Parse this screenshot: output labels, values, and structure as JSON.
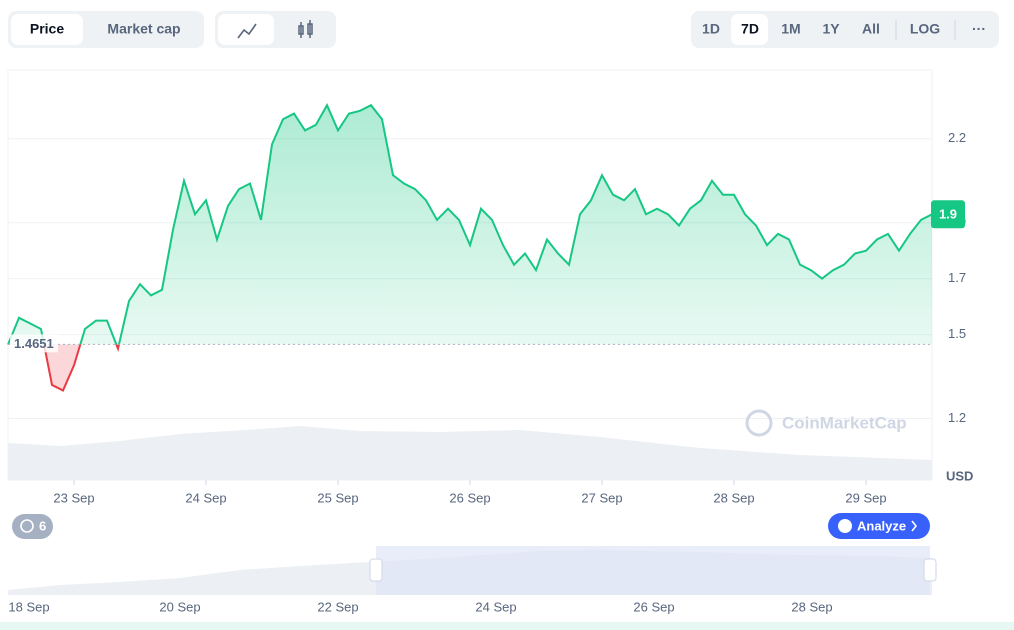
{
  "toolbar": {
    "tabs": [
      "Price",
      "Market cap"
    ],
    "ranges": [
      "1D",
      "7D",
      "1M",
      "1Y",
      "All"
    ],
    "log": "LOG",
    "more": "···"
  },
  "chart_data": {
    "type": "line",
    "color": "#16c784",
    "down_color": "#ea3943",
    "x": [
      0,
      1,
      2,
      3,
      4,
      5,
      6,
      7,
      8,
      9,
      10,
      11,
      12,
      13,
      14,
      15,
      16,
      17,
      18,
      19,
      20,
      21,
      22,
      23,
      24,
      25,
      26,
      27,
      28,
      29,
      30,
      31,
      32,
      33,
      34,
      35,
      36,
      37,
      38,
      39,
      40,
      41,
      42,
      43,
      44,
      45,
      46,
      47,
      48,
      49,
      50,
      51,
      52,
      53,
      54,
      55,
      56,
      57,
      58,
      59,
      60,
      61,
      62,
      63,
      64,
      65,
      66,
      67,
      68,
      69,
      70,
      71,
      72,
      73,
      74,
      75,
      76,
      77,
      78,
      79,
      80,
      81,
      82,
      83,
      84
    ],
    "values": [
      1.464,
      1.56,
      1.54,
      1.52,
      1.32,
      1.3,
      1.39,
      1.52,
      1.55,
      1.55,
      1.45,
      1.62,
      1.68,
      1.64,
      1.66,
      1.875,
      2.05,
      1.93,
      1.98,
      1.84,
      1.96,
      2.02,
      2.04,
      1.91,
      2.18,
      2.27,
      2.29,
      2.23,
      2.25,
      2.32,
      2.23,
      2.29,
      2.3,
      2.32,
      2.27,
      2.07,
      2.04,
      2.02,
      1.98,
      1.91,
      1.95,
      1.91,
      1.82,
      1.95,
      1.91,
      1.82,
      1.75,
      1.79,
      1.73,
      1.84,
      1.79,
      1.75,
      1.93,
      1.98,
      2.07,
      2.0,
      1.98,
      2.02,
      1.93,
      1.95,
      1.93,
      1.89,
      1.95,
      1.98,
      2.05,
      2.0,
      2.0,
      1.93,
      1.89,
      1.82,
      1.86,
      1.84,
      1.75,
      1.73,
      1.7,
      1.73,
      1.75,
      1.79,
      1.8,
      1.84,
      1.86,
      1.8,
      1.86,
      1.91,
      1.93
    ],
    "last_label": "1.9",
    "baseline": 1.4651,
    "xlim": [
      0,
      84
    ],
    "xticks": [
      {
        "value": 6,
        "label": "23 Sep"
      },
      {
        "value": 18,
        "label": "24 Sep"
      },
      {
        "value": 30,
        "label": "25 Sep"
      },
      {
        "value": 42,
        "label": "26 Sep"
      },
      {
        "value": 54,
        "label": "27 Sep"
      },
      {
        "value": 66,
        "label": "28 Sep"
      },
      {
        "value": 78,
        "label": "29 Sep"
      }
    ],
    "ylim": [
      0.98,
      2.446
    ],
    "yticks": [
      1.2,
      1.5,
      1.7,
      1.9,
      2.2
    ],
    "grid": true,
    "y_unit": "USD"
  },
  "watermark": "CoinMarketCap",
  "history_count": 6,
  "analyze": "Analyze",
  "navigator_dates": [
    "18 Sep",
    "20 Sep",
    "22 Sep",
    "24 Sep",
    "26 Sep",
    "28 Sep"
  ]
}
